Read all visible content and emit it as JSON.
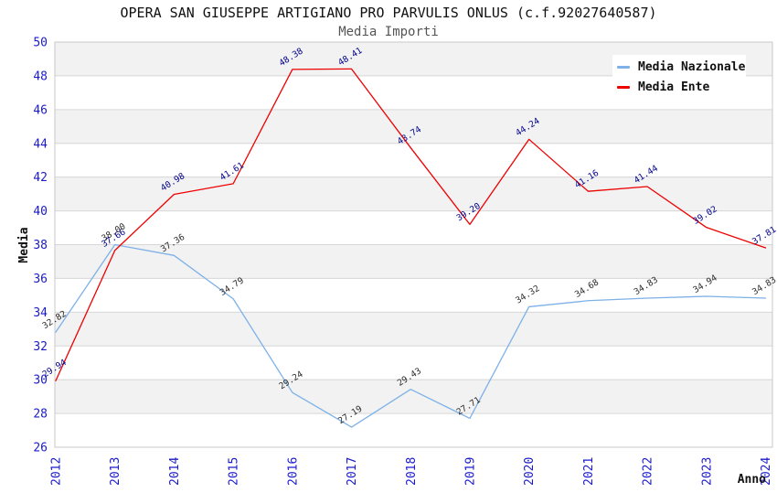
{
  "title": "OPERA SAN GIUSEPPE ARTIGIANO PRO PARVULIS ONLUS (c.f.92027640587)",
  "subtitle": "Media Importi",
  "axes": {
    "y_label": "Media",
    "x_label": "Anno"
  },
  "colors": {
    "axis_tick": "#1A1ACD",
    "gridline": "#D6D6D6",
    "plot_border": "#C8C8C8",
    "band": "#F2F2F2",
    "background": "#FFFFFF",
    "axis_title": "#111111"
  },
  "chart_data": {
    "type": "line",
    "title": "OPERA SAN GIUSEPPE ARTIGIANO PRO PARVULIS ONLUS (c.f.92027640587)",
    "subtitle": "Media Importi",
    "xlabel": "Anno",
    "ylabel": "Media",
    "categories": [
      "2012",
      "2013",
      "2014",
      "2015",
      "2016",
      "2017",
      "2018",
      "2019",
      "2020",
      "2021",
      "2022",
      "2023",
      "2024"
    ],
    "series": [
      {
        "name": "Media Nazionale",
        "color": "#7DB1E8",
        "label_color": "#2B2B2B",
        "values": [
          32.82,
          38.0,
          37.36,
          34.79,
          29.24,
          27.19,
          29.43,
          27.71,
          34.32,
          34.68,
          34.83,
          34.94,
          34.83
        ]
      },
      {
        "name": "Media Ente",
        "color": "#EE0000",
        "label_color": "#00008B",
        "values": [
          29.94,
          37.66,
          40.98,
          41.61,
          48.38,
          48.41,
          43.74,
          39.2,
          44.24,
          41.16,
          41.44,
          39.02,
          37.81
        ]
      }
    ],
    "ylim": [
      26,
      50
    ],
    "ytick_step": 2,
    "grid": true,
    "band_fill": "alternate-every-2-units",
    "legend_position": "top-right",
    "point_labels": "values shown rotated above each point"
  }
}
